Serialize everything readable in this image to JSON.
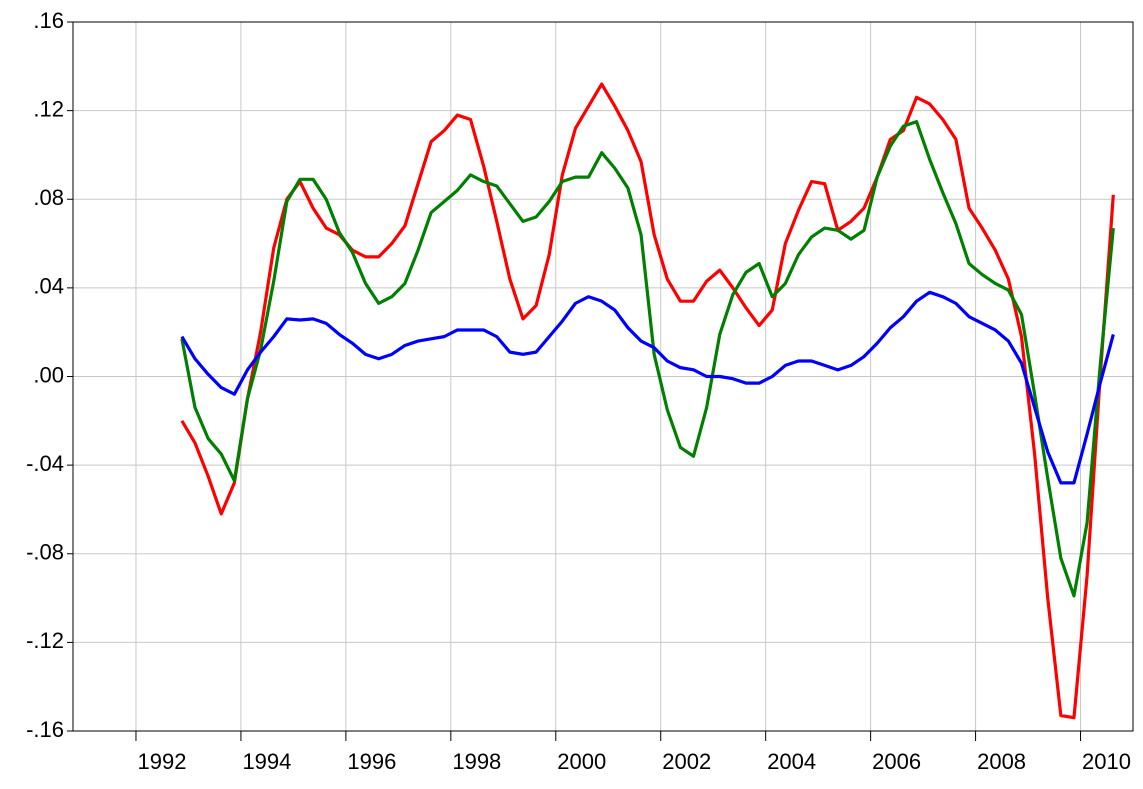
{
  "chart_data": {
    "type": "line",
    "x": [
      1992.875,
      1993.125,
      1993.375,
      1993.625,
      1993.875,
      1994.125,
      1994.375,
      1994.625,
      1994.875,
      1995.125,
      1995.375,
      1995.625,
      1995.875,
      1996.125,
      1996.375,
      1996.625,
      1996.875,
      1997.125,
      1997.375,
      1997.625,
      1997.875,
      1998.125,
      1998.375,
      1998.625,
      1998.875,
      1999.125,
      1999.375,
      1999.625,
      1999.875,
      2000.125,
      2000.375,
      2000.625,
      2000.875,
      2001.125,
      2001.375,
      2001.625,
      2001.875,
      2002.125,
      2002.375,
      2002.625,
      2002.875,
      2003.125,
      2003.375,
      2003.625,
      2003.875,
      2004.125,
      2004.375,
      2004.625,
      2004.875,
      2005.125,
      2005.375,
      2005.625,
      2005.875,
      2006.125,
      2006.375,
      2006.625,
      2006.875,
      2007.125,
      2007.375,
      2007.625,
      2007.875,
      2008.125,
      2008.375,
      2008.625,
      2008.875,
      2009.125,
      2009.375,
      2009.625,
      2009.875,
      2010.125,
      2010.375,
      2010.625
    ],
    "series": [
      {
        "color": "#ff0000",
        "values": [
          -0.02,
          -0.03,
          -0.045,
          -0.062,
          -0.048,
          -0.01,
          0.02,
          0.058,
          0.08,
          0.088,
          0.076,
          0.067,
          0.064,
          0.057,
          0.054,
          0.054,
          0.06,
          0.068,
          0.087,
          0.106,
          0.111,
          0.118,
          0.116,
          0.095,
          0.07,
          0.044,
          0.026,
          0.032,
          0.055,
          0.091,
          0.112,
          0.122,
          0.132,
          0.122,
          0.111,
          0.097,
          0.064,
          0.044,
          0.034,
          0.034,
          0.043,
          0.048,
          0.04,
          0.031,
          0.023,
          0.03,
          0.06,
          0.075,
          0.088,
          0.087,
          0.066,
          0.07,
          0.076,
          0.09,
          0.107,
          0.111,
          0.126,
          0.123,
          0.116,
          0.107,
          0.076,
          0.067,
          0.057,
          0.044,
          0.018,
          -0.035,
          -0.1,
          -0.153,
          -0.154,
          -0.09,
          0.0,
          0.082
        ]
      },
      {
        "color": "#008000",
        "values": [
          0.017,
          -0.014,
          -0.028,
          -0.035,
          -0.047,
          -0.01,
          0.012,
          0.043,
          0.079,
          0.089,
          0.089,
          0.08,
          0.065,
          0.056,
          0.042,
          0.033,
          0.036,
          0.042,
          0.057,
          0.074,
          0.079,
          0.084,
          0.091,
          0.088,
          0.086,
          0.078,
          0.07,
          0.072,
          0.079,
          0.088,
          0.09,
          0.09,
          0.101,
          0.094,
          0.085,
          0.064,
          0.01,
          -0.015,
          -0.032,
          -0.036,
          -0.014,
          0.019,
          0.037,
          0.047,
          0.051,
          0.036,
          0.042,
          0.055,
          0.063,
          0.067,
          0.066,
          0.062,
          0.066,
          0.09,
          0.104,
          0.113,
          0.115,
          0.098,
          0.083,
          0.069,
          0.051,
          0.046,
          0.042,
          0.039,
          0.028,
          -0.008,
          -0.046,
          -0.082,
          -0.099,
          -0.066,
          0.005,
          0.067
        ]
      },
      {
        "color": "#0000ff",
        "values": [
          0.018,
          0.008,
          0.001,
          -0.005,
          -0.008,
          0.003,
          0.011,
          0.018,
          0.026,
          0.0255,
          0.026,
          0.024,
          0.019,
          0.015,
          0.01,
          0.008,
          0.01,
          0.014,
          0.016,
          0.017,
          0.018,
          0.021,
          0.021,
          0.021,
          0.018,
          0.011,
          0.01,
          0.011,
          0.018,
          0.025,
          0.033,
          0.036,
          0.034,
          0.03,
          0.022,
          0.016,
          0.013,
          0.007,
          0.004,
          0.003,
          0.0,
          0.0,
          -0.001,
          -0.003,
          -0.003,
          0.0,
          0.005,
          0.007,
          0.007,
          0.005,
          0.003,
          0.005,
          0.009,
          0.015,
          0.022,
          0.027,
          0.034,
          0.038,
          0.036,
          0.033,
          0.027,
          0.024,
          0.021,
          0.016,
          0.006,
          -0.014,
          -0.034,
          -0.048,
          -0.048,
          -0.026,
          -0.003,
          0.019
        ]
      }
    ],
    "xlim": [
      1990.8,
      2011.0
    ],
    "xticks": [
      1992,
      1994,
      1996,
      1998,
      2000,
      2002,
      2004,
      2006,
      2008,
      2010
    ],
    "ylim": [
      -0.16,
      0.16
    ],
    "yticks": [
      {
        "value": -0.16,
        "label": "-.16"
      },
      {
        "value": -0.12,
        "label": "-.12"
      },
      {
        "value": -0.08,
        "label": "-.08"
      },
      {
        "value": -0.04,
        "label": "-.04"
      },
      {
        "value": 0,
        "label": ".00"
      },
      {
        "value": 0.04,
        "label": ".04"
      },
      {
        "value": 0.08,
        "label": ".08"
      },
      {
        "value": 0.12,
        "label": ".12"
      },
      {
        "value": 0.16,
        "label": ".16"
      }
    ],
    "grid": true
  }
}
